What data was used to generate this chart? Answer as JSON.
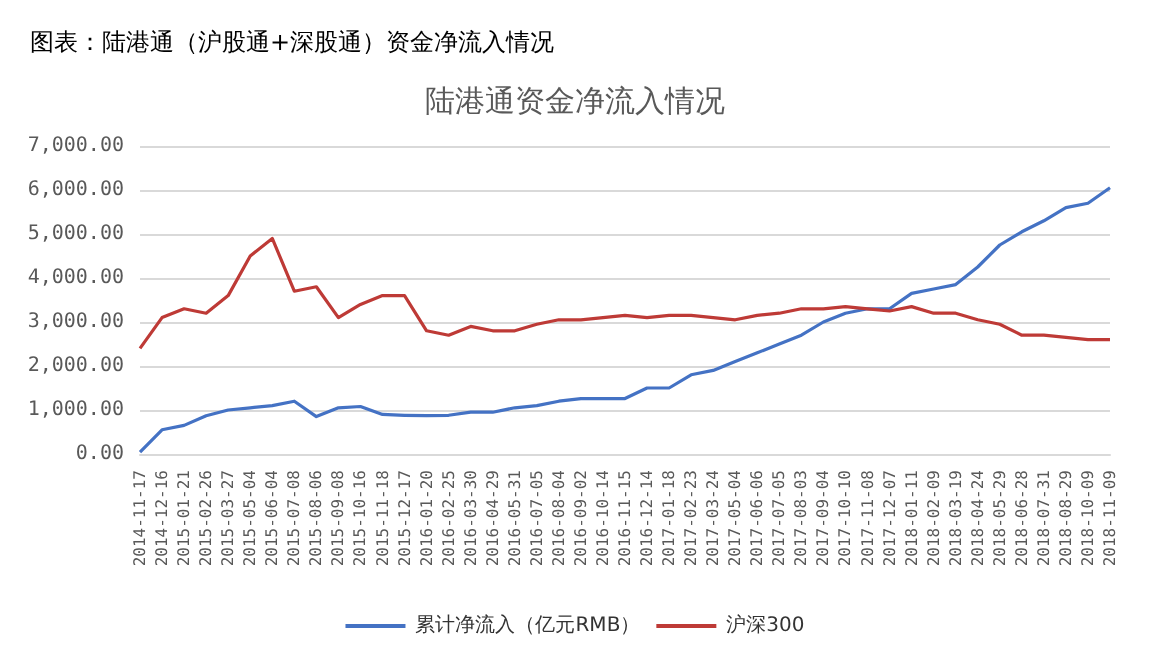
{
  "chart_data": {
    "type": "line",
    "title": "图表：陆港通（沪股通+深股通）资金净流入情况",
    "subtitle": "陆港通资金净流入情况",
    "categories": [
      "2014-11-17",
      "2014-12-16",
      "2015-01-21",
      "2015-02-26",
      "2015-03-27",
      "2015-05-04",
      "2015-06-04",
      "2015-07-08",
      "2015-08-06",
      "2015-09-08",
      "2015-10-16",
      "2015-11-18",
      "2015-12-17",
      "2016-01-20",
      "2016-02-25",
      "2016-03-30",
      "2016-04-29",
      "2016-05-31",
      "2016-07-05",
      "2016-08-04",
      "2016-09-02",
      "2016-10-14",
      "2016-11-15",
      "2016-12-14",
      "2017-01-18",
      "2017-02-23",
      "2017-03-24",
      "2017-05-04",
      "2017-06-06",
      "2017-07-05",
      "2017-08-03",
      "2017-09-04",
      "2017-10-10",
      "2017-11-08",
      "2017-12-07",
      "2018-01-11",
      "2018-02-09",
      "2018-03-19",
      "2018-04-24",
      "2018-05-29",
      "2018-06-28",
      "2018-07-31",
      "2018-08-29",
      "2018-10-09",
      "2018-11-09"
    ],
    "series": [
      {
        "name": "累计净流入（亿元RMB）",
        "color": "#4472c4",
        "values": [
          40,
          550,
          650,
          870,
          1000,
          1050,
          1100,
          1200,
          850,
          1050,
          1080,
          900,
          880,
          870,
          880,
          950,
          950,
          1050,
          1100,
          1200,
          1260,
          1260,
          1260,
          1500,
          1500,
          1800,
          1900,
          2100,
          2300,
          2500,
          2700,
          3000,
          3200,
          3300,
          3300,
          3650,
          3750,
          3850,
          4250,
          4750,
          5050,
          5300,
          5600,
          5700,
          6050
        ]
      },
      {
        "name": "沪深300",
        "color": "#be3a36",
        "values": [
          2400,
          3100,
          3300,
          3200,
          3600,
          4500,
          4900,
          3700,
          3800,
          3100,
          3400,
          3600,
          3600,
          2800,
          2700,
          2900,
          2800,
          2800,
          2950,
          3050,
          3050,
          3100,
          3150,
          3100,
          3150,
          3150,
          3100,
          3050,
          3150,
          3200,
          3300,
          3300,
          3350,
          3300,
          3250,
          3350,
          3200,
          3200,
          3050,
          2950,
          2700,
          2700,
          2650,
          2600,
          2600
        ]
      }
    ],
    "ylim": [
      0,
      7000
    ],
    "yticks": [
      {
        "value": 0,
        "label": "0.00"
      },
      {
        "value": 1000,
        "label": "1,000.00"
      },
      {
        "value": 2000,
        "label": "2,000.00"
      },
      {
        "value": 3000,
        "label": "3,000.00"
      },
      {
        "value": 4000,
        "label": "4,000.00"
      },
      {
        "value": 5000,
        "label": "5,000.00"
      },
      {
        "value": 6000,
        "label": "6,000.00"
      },
      {
        "value": 7000,
        "label": "7,000.00"
      }
    ],
    "grid": "y",
    "legend": "bottom"
  }
}
